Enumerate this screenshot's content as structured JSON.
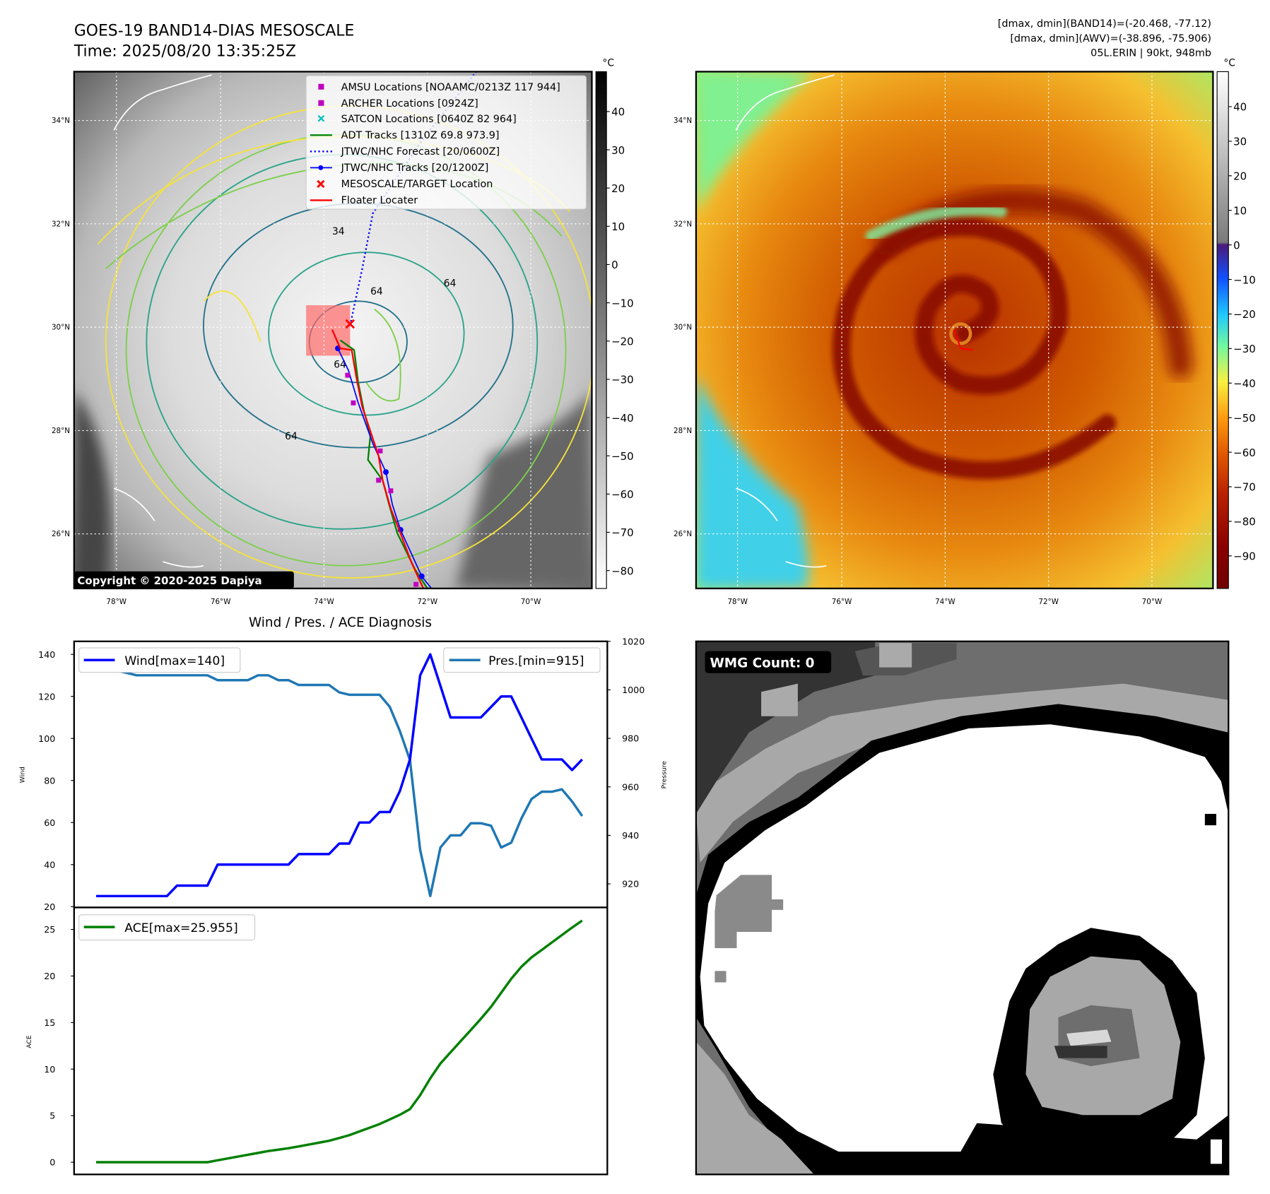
{
  "header": {
    "title": "GOES-19 BAND14-DIAS MESOSCALE",
    "time": "Time: 2025/08/20 13:35:25Z",
    "info": [
      "[dmax, dmin](BAND14)=(-20.468, -77.12)",
      "[dmax, dmin](AWV)=(-38.896, -75.906)",
      "05L.ERIN | 90kt, 948mb"
    ]
  },
  "map": {
    "lat_labels": [
      "34°N",
      "32°N",
      "30°N",
      "28°N",
      "26°N"
    ],
    "lon_labels": [
      "78°W",
      "76°W",
      "74°W",
      "72°W",
      "70°W"
    ],
    "copyright": "Copyright © 2020-2025 Dapiya",
    "contour_labels": [
      "64",
      "64",
      "64",
      "64",
      "34"
    ],
    "legend": [
      {
        "label": "AMSU Locations [NOAAMC/0213Z 117 944]",
        "marker": "square",
        "color": "#c000c0"
      },
      {
        "label": "ARCHER Locations [0924Z]",
        "marker": "square",
        "color": "#c000c0"
      },
      {
        "label": "SATCON Locations [0640Z 82 964]",
        "marker": "x",
        "color": "#00c0c0"
      },
      {
        "label": "ADT Tracks [1310Z 69.8 973.9]",
        "marker": "line",
        "color": "#008000"
      },
      {
        "label": "JTWC/NHC Forecast [20/0600Z]",
        "marker": "dotted",
        "color": "#0000ff"
      },
      {
        "label": "JTWC/NHC Tracks [20/1200Z]",
        "marker": "line-dot",
        "color": "#0000ff"
      },
      {
        "label": "MESOSCALE/TARGET Location",
        "marker": "x",
        "color": "#ff0000"
      },
      {
        "label": "Floater Locater",
        "marker": "line",
        "color": "#ff0000"
      }
    ]
  },
  "colorbar_gray": {
    "unit": "°C",
    "ticks": [
      "40",
      "30",
      "20",
      "10",
      "0",
      "−10",
      "−20",
      "−30",
      "−40",
      "−50",
      "−60",
      "−70",
      "−80"
    ]
  },
  "colorbar_color": {
    "unit": "°C",
    "ticks": [
      "40",
      "30",
      "20",
      "10",
      "0",
      "−10",
      "−20",
      "−30",
      "−40",
      "−50",
      "−60",
      "−70",
      "−80",
      "−90"
    ]
  },
  "wmg": {
    "label": "WMG Count: 0"
  },
  "chart_data": [
    {
      "type": "line",
      "title": "Wind / Pres. / ACE Diagnosis",
      "ylabel": "Wind",
      "ylabel_right": "Pressure",
      "ylim": [
        20,
        145
      ],
      "ylim_right": [
        914,
        1020
      ],
      "yticks": [
        20,
        40,
        60,
        80,
        100,
        120,
        140
      ],
      "yticks_right": [
        920,
        940,
        960,
        980,
        1000,
        1020
      ],
      "series": [
        {
          "name": "Wind[max=140]",
          "color": "#0000ff",
          "axis": "left",
          "values": [
            25,
            25,
            25,
            25,
            25,
            25,
            25,
            25,
            30,
            30,
            30,
            30,
            40,
            40,
            40,
            40,
            40,
            40,
            40,
            40,
            45,
            45,
            45,
            45,
            50,
            50,
            60,
            60,
            65,
            65,
            75,
            90,
            130,
            140,
            125,
            110,
            110,
            110,
            110,
            115,
            120,
            120,
            110,
            100,
            90,
            90,
            90,
            85,
            90
          ]
        },
        {
          "name": "Pres.[min=915]",
          "color": "#1f77b4",
          "axis": "right",
          "values": [
            1016,
            1016,
            1008,
            1007,
            1006,
            1006,
            1006,
            1006,
            1006,
            1006,
            1006,
            1006,
            1004,
            1004,
            1004,
            1004,
            1006,
            1006,
            1004,
            1004,
            1002,
            1002,
            1002,
            1002,
            999,
            998,
            998,
            998,
            998,
            993,
            983,
            971,
            934,
            915,
            935,
            940,
            940,
            945,
            945,
            944,
            935,
            937,
            947,
            955,
            958,
            958,
            959,
            954,
            948
          ]
        }
      ]
    },
    {
      "type": "line",
      "ylabel": "ACE",
      "ylim": [
        -1,
        27
      ],
      "yticks": [
        0,
        5,
        10,
        15,
        20,
        25
      ],
      "series": [
        {
          "name": "ACE[max=25.955]",
          "color": "#008000",
          "values": [
            0,
            0,
            0,
            0,
            0,
            0,
            0,
            0,
            0,
            0,
            0,
            0,
            0.2,
            0.4,
            0.6,
            0.8,
            1.0,
            1.2,
            1.35,
            1.5,
            1.7,
            1.9,
            2.1,
            2.3,
            2.6,
            2.9,
            3.3,
            3.7,
            4.1,
            4.6,
            5.1,
            5.7,
            7.2,
            9.0,
            10.6,
            11.8,
            13.0,
            14.2,
            15.4,
            16.7,
            18.2,
            19.7,
            21.0,
            22.0,
            22.8,
            23.6,
            24.4,
            25.2,
            25.955
          ]
        }
      ]
    }
  ]
}
